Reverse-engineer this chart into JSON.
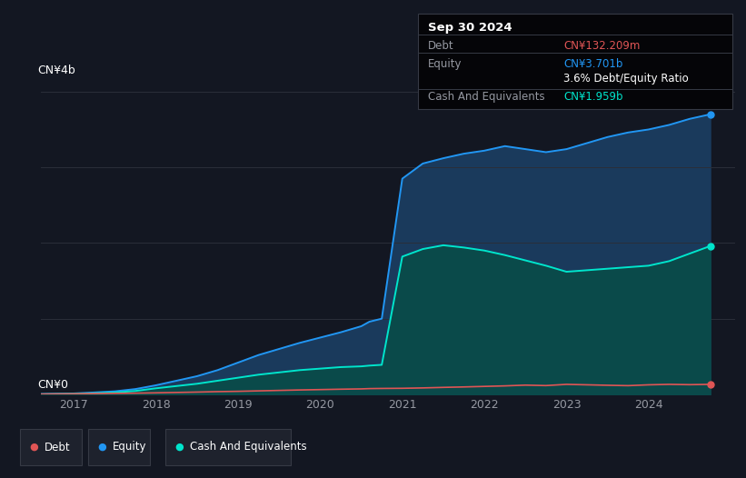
{
  "bg_color": "#131722",
  "plot_bg_color": "#131722",
  "grid_color": "#2a2e39",
  "ylabel_top": "CN¥4b",
  "ylabel_bottom": "CN¥0",
  "x_ticks": [
    2017,
    2018,
    2019,
    2020,
    2021,
    2022,
    2023,
    2024
  ],
  "equity_color": "#2196f3",
  "equity_fill": "#1a3a5c",
  "cash_color": "#00e5cc",
  "cash_fill": "#0a4a4a",
  "debt_color": "#e05555",
  "legend_bg": "#1e222d",
  "legend_border": "#363a45",
  "tooltip_bg": "#050508",
  "tooltip_border": "#363a45",
  "tooltip_title": "Sep 30 2024",
  "tooltip_debt_label": "Debt",
  "tooltip_debt_value": "CN¥132.209m",
  "tooltip_equity_label": "Equity",
  "tooltip_equity_value": "CN¥3.701b",
  "tooltip_ratio": "3.6% Debt/Equity Ratio",
  "tooltip_cash_label": "Cash And Equivalents",
  "tooltip_cash_value": "CN¥1.959b",
  "x_years": [
    2016.6,
    2016.75,
    2017.0,
    2017.25,
    2017.5,
    2017.75,
    2018.0,
    2018.25,
    2018.5,
    2018.75,
    2019.0,
    2019.25,
    2019.5,
    2019.75,
    2020.0,
    2020.25,
    2020.5,
    2020.6,
    2020.75,
    2021.0,
    2021.25,
    2021.5,
    2021.75,
    2022.0,
    2022.25,
    2022.5,
    2022.75,
    2023.0,
    2023.25,
    2023.5,
    2023.75,
    2024.0,
    2024.25,
    2024.5,
    2024.75
  ],
  "equity_values": [
    0.005,
    0.008,
    0.012,
    0.025,
    0.04,
    0.07,
    0.12,
    0.18,
    0.24,
    0.32,
    0.42,
    0.52,
    0.6,
    0.68,
    0.75,
    0.82,
    0.9,
    0.96,
    1.0,
    2.85,
    3.05,
    3.12,
    3.18,
    3.22,
    3.28,
    3.24,
    3.2,
    3.24,
    3.32,
    3.4,
    3.46,
    3.5,
    3.56,
    3.64,
    3.7
  ],
  "cash_values": [
    0.002,
    0.004,
    0.008,
    0.015,
    0.025,
    0.045,
    0.08,
    0.11,
    0.14,
    0.18,
    0.22,
    0.26,
    0.29,
    0.32,
    0.34,
    0.36,
    0.37,
    0.38,
    0.39,
    1.82,
    1.92,
    1.97,
    1.94,
    1.9,
    1.84,
    1.77,
    1.7,
    1.62,
    1.64,
    1.66,
    1.68,
    1.7,
    1.76,
    1.86,
    1.959
  ],
  "debt_values": [
    0.003,
    0.005,
    0.007,
    0.01,
    0.013,
    0.016,
    0.02,
    0.025,
    0.03,
    0.036,
    0.04,
    0.046,
    0.052,
    0.058,
    0.063,
    0.068,
    0.072,
    0.076,
    0.078,
    0.08,
    0.085,
    0.092,
    0.098,
    0.105,
    0.112,
    0.122,
    0.116,
    0.132,
    0.126,
    0.12,
    0.115,
    0.126,
    0.132,
    0.128,
    0.132
  ],
  "ylim": [
    0,
    4.2
  ],
  "xlim": [
    2016.6,
    2025.05
  ],
  "legend_items": [
    "Debt",
    "Equity",
    "Cash And Equivalents"
  ]
}
